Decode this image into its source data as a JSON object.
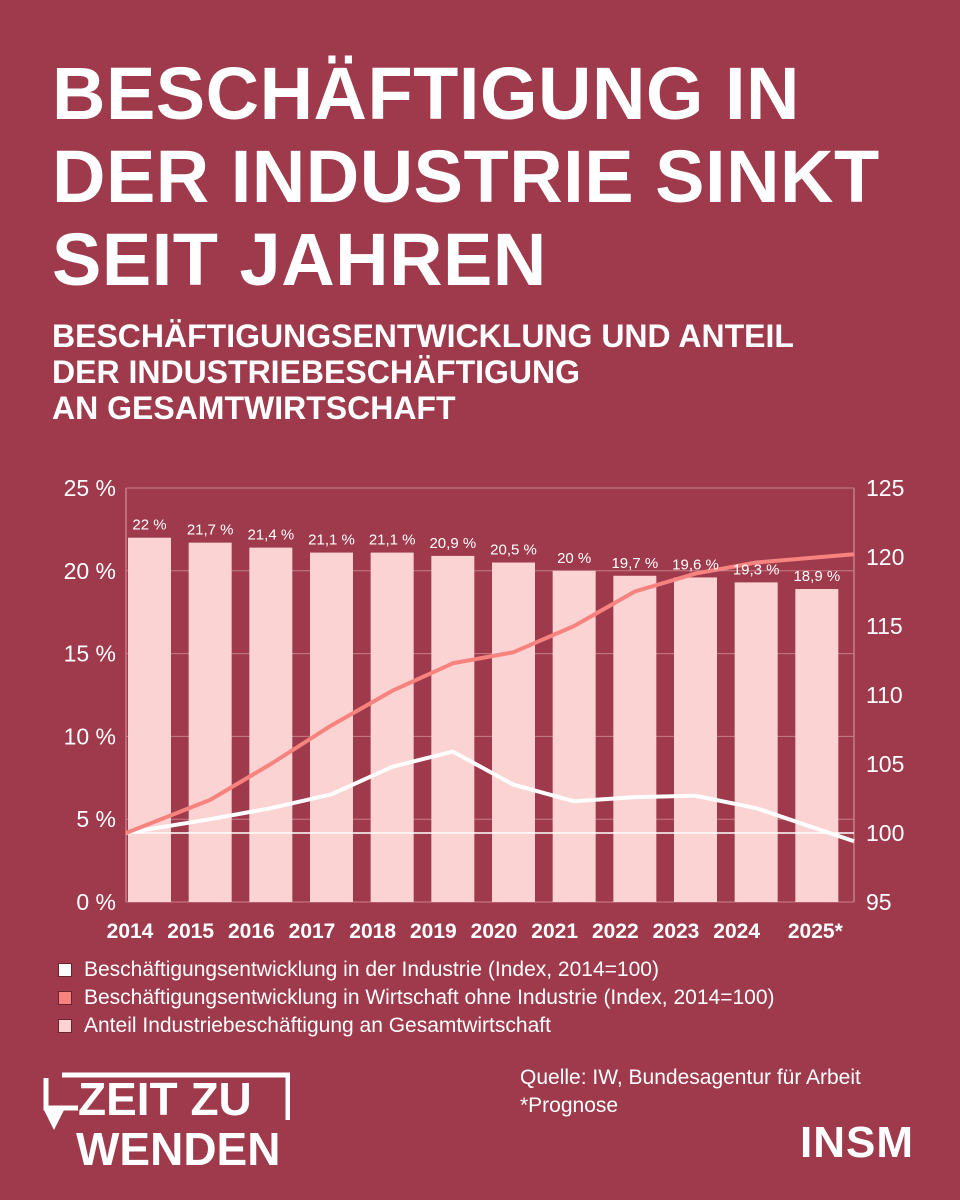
{
  "title": "BESCHÄFTIGUNG IN DER INDUSTRIE SINKT SEIT JAHREN",
  "subtitle_lines": [
    "BESCHÄFTIGUNGSENTWICKLUNG UND ANTEIL",
    "DER INDUSTRIEBESCHÄFTIGUNG",
    "AN GESAMTWIRTSCHAFT"
  ],
  "colors": {
    "background": "#9e3a4b",
    "bar": "#fcd3d3",
    "industry_line": "#ffffff",
    "economy_line": "#f7837f",
    "grid": "#c97d89"
  },
  "chart_data": {
    "type": "bar",
    "categories": [
      "2014",
      "2015",
      "2016",
      "2017",
      "2018",
      "2019",
      "2020",
      "2021",
      "2022",
      "2023",
      "2024",
      "2025*"
    ],
    "bar_series": {
      "values": [
        22,
        21.7,
        21.4,
        21.1,
        21.1,
        20.9,
        20.5,
        20,
        19.7,
        19.6,
        19.3,
        18.9
      ],
      "labels": [
        "22 %",
        "21,7 %",
        "21,4 %",
        "21,1 %",
        "21,1 %",
        "20,9 %",
        "20,5 %",
        "20 %",
        "19,7 %",
        "19,6 %",
        "19,3 %",
        "18,9 %"
      ]
    },
    "line_series": [
      {
        "values": [
          100,
          101,
          101.8,
          102.8,
          104.8,
          105.9,
          103.5,
          102.3,
          102.6,
          102.7,
          101.8,
          99.4
        ]
      },
      {
        "values": [
          100,
          102.4,
          105,
          107.8,
          110.3,
          112.3,
          113.1,
          115,
          117.5,
          118.8,
          119.6,
          120.2
        ]
      }
    ],
    "y_left": {
      "ylim": [
        0,
        25
      ],
      "ticks": [
        0,
        5,
        10,
        15,
        20,
        25
      ],
      "tick_labels": [
        "0 %",
        "5 %",
        "10 %",
        "15 %",
        "20 %",
        "25 %"
      ]
    },
    "y_right": {
      "ylim": [
        95,
        125
      ],
      "ticks": [
        95,
        100,
        105,
        110,
        115,
        120,
        125
      ],
      "tick_labels": [
        "95",
        "100",
        "105",
        "110",
        "115",
        "120",
        "125"
      ]
    },
    "grid": true,
    "legend_position": "bottom-left"
  },
  "legend": [
    {
      "label": "Beschäftigungsentwicklung in der Industrie (Index, 2014=100)",
      "color": "#ffffff"
    },
    {
      "label": "Beschäftigungsentwicklung in Wirtschaft ohne Industrie (Index, 2014=100)",
      "color": "#f7837f"
    },
    {
      "label": "Anteil Industriebeschäftigung an Gesamtwirtschaft",
      "color": "#fcd3d3"
    }
  ],
  "source": "Quelle: IW, Bundesagentur für Arbeit",
  "footnote": "*Prognose",
  "logo_left": {
    "line1": "ZEIT ZU",
    "line2": "WENDEN"
  },
  "logo_right": "INSM"
}
